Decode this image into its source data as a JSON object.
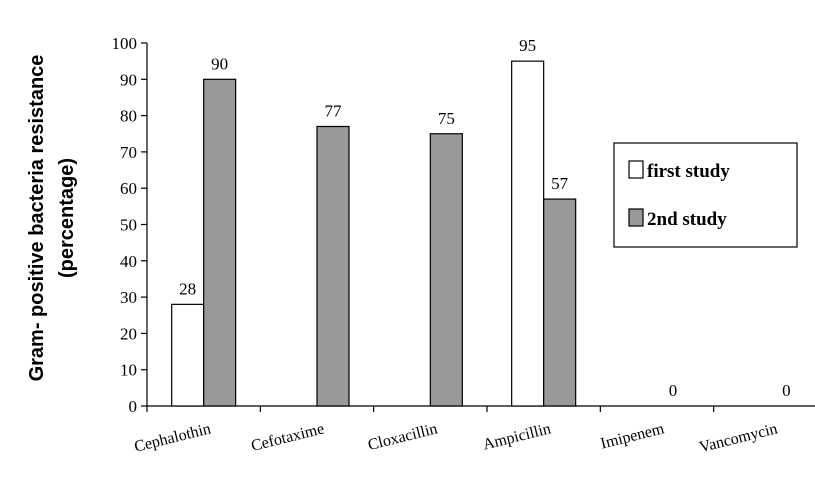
{
  "chart_data": {
    "type": "bar",
    "ylabel_lines": [
      "Gram- positive bacteria resistance",
      "(percentage)"
    ],
    "xlabel": "",
    "ylim": [
      0,
      100
    ],
    "y_ticks": [
      0,
      10,
      20,
      30,
      40,
      50,
      60,
      70,
      80,
      90,
      100
    ],
    "categories": [
      "Cephalothin",
      "Cefotaxime",
      "Cloxacillin",
      "Ampicillin",
      "Imipenem",
      "Vancomycin"
    ],
    "series": [
      {
        "name": "first study",
        "color": "#ffffff",
        "values": [
          28,
          null,
          null,
          95,
          null,
          null
        ]
      },
      {
        "name": "2nd study",
        "color": "#999999",
        "values": [
          90,
          77,
          75,
          57,
          0,
          0
        ]
      }
    ],
    "legend_position": "right",
    "grid": false
  }
}
